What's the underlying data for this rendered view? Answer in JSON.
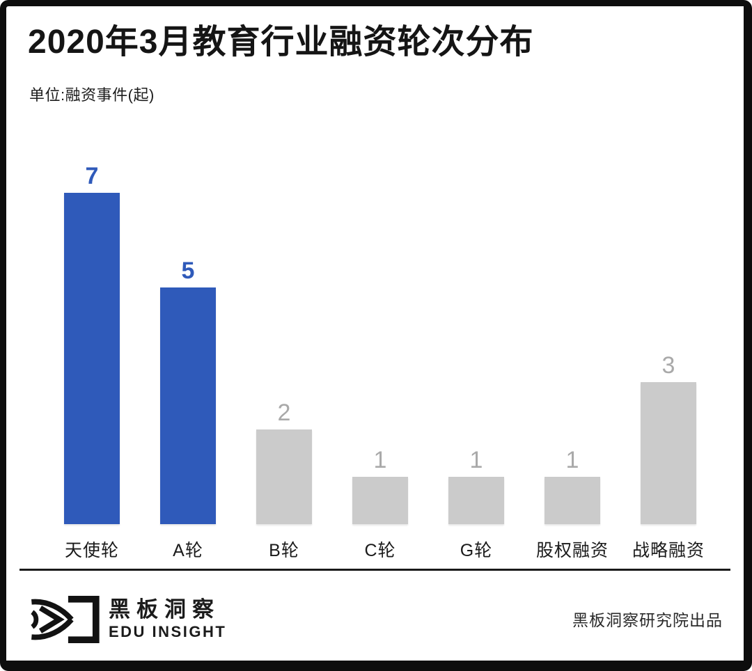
{
  "header": {
    "title": "2020年3月教育行业融资轮次分布",
    "unit_label": "单位:融资事件(起)"
  },
  "chart_data": {
    "type": "bar",
    "title": "2020年3月教育行业融资轮次分布",
    "xlabel": "",
    "ylabel": "融资事件(起)",
    "categories": [
      "天使轮",
      "A轮",
      "B轮",
      "C轮",
      "G轮",
      "股权融资",
      "战略融资"
    ],
    "values": [
      7,
      5,
      2,
      1,
      1,
      1,
      3
    ],
    "highlighted": [
      true,
      true,
      false,
      false,
      false,
      false,
      false
    ],
    "ylim": [
      0,
      7.5
    ],
    "grid": false,
    "legend": "none",
    "value_labels": "above-bars"
  },
  "colors": {
    "highlight_bar": "#2F5ABA",
    "default_bar": "#CBCBCB",
    "highlight_value": "#2F5ABA",
    "default_value": "#A9A9A9",
    "category_label": "#1A1A1A",
    "frame": "#0D0D0D"
  },
  "footer": {
    "brand_cn": "黑板洞察",
    "brand_en": "EDU INSIGHT",
    "logo_icon": "eye-bracket-logo-icon",
    "credit": "黑板洞察研究院出品"
  }
}
